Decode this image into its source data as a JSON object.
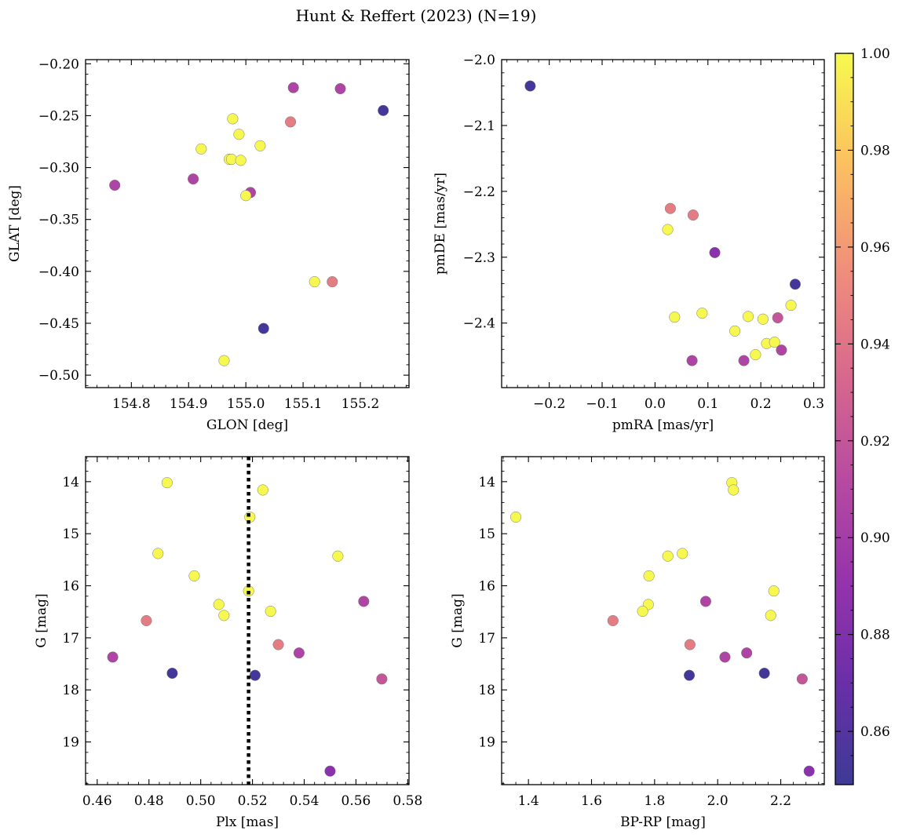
{
  "figure": {
    "title": "Hunt & Reffert (2023) (N=19)"
  },
  "colorbar": {
    "colormap": "plasma",
    "range": [
      0.849,
      1.0
    ],
    "ticks": [
      0.86,
      0.88,
      0.9,
      0.92,
      0.94,
      0.96,
      0.98,
      1.0
    ],
    "tick_labels": [
      "0.86",
      "0.88",
      "0.90",
      "0.92",
      "0.94",
      "0.96",
      "0.98",
      "1.00"
    ]
  },
  "chart_data": [
    {
      "type": "scatter",
      "id": "glon-glat",
      "xlabel": "GLON [deg]",
      "ylabel": "GLAT [deg]",
      "xlim": [
        154.72,
        155.285
      ],
      "ylim": [
        -0.512,
        -0.196
      ],
      "xticks": [
        154.8,
        154.9,
        155.0,
        155.1,
        155.2
      ],
      "xtick_labels": [
        "154.8",
        "154.9",
        "155.0",
        "155.1",
        "155.2"
      ],
      "yticks": [
        -0.5,
        -0.45,
        -0.4,
        -0.35,
        -0.3,
        -0.25,
        -0.2
      ],
      "ytick_labels": [
        "−0.50",
        "−0.45",
        "−0.40",
        "−0.35",
        "−0.30",
        "−0.25",
        "−0.20"
      ],
      "y_inverted": false,
      "points": [
        {
          "x": 154.771,
          "y": -0.317,
          "c": 0.906
        },
        {
          "x": 154.908,
          "y": -0.311,
          "c": 0.907
        },
        {
          "x": 154.922,
          "y": -0.282,
          "c": 0.999
        },
        {
          "x": 154.962,
          "y": -0.486,
          "c": 0.999
        },
        {
          "x": 154.971,
          "y": -0.292,
          "c": 0.999
        },
        {
          "x": 154.975,
          "y": -0.292,
          "c": 0.999
        },
        {
          "x": 154.977,
          "y": -0.253,
          "c": 0.999
        },
        {
          "x": 154.988,
          "y": -0.268,
          "c": 0.999
        },
        {
          "x": 154.991,
          "y": -0.293,
          "c": 0.999
        },
        {
          "x": 155.008,
          "y": -0.324,
          "c": 0.906
        },
        {
          "x": 155.0,
          "y": -0.327,
          "c": 0.999
        },
        {
          "x": 155.025,
          "y": -0.279,
          "c": 0.999
        },
        {
          "x": 155.031,
          "y": -0.455,
          "c": 0.852
        },
        {
          "x": 155.083,
          "y": -0.223,
          "c": 0.906
        },
        {
          "x": 155.078,
          "y": -0.256,
          "c": 0.945
        },
        {
          "x": 155.12,
          "y": -0.41,
          "c": 0.999
        },
        {
          "x": 155.151,
          "y": -0.41,
          "c": 0.945
        },
        {
          "x": 155.165,
          "y": -0.224,
          "c": 0.906
        },
        {
          "x": 155.24,
          "y": -0.245,
          "c": 0.852
        }
      ]
    },
    {
      "type": "scatter",
      "id": "pmra-pmde",
      "xlabel": "pmRA [mas/yr]",
      "ylabel": "pmDE [mas/yr]",
      "xlim": [
        -0.29,
        0.32
      ],
      "ylim": [
        -2.498,
        -2.0
      ],
      "xticks": [
        -0.2,
        -0.1,
        0.0,
        0.1,
        0.2,
        0.3
      ],
      "xtick_labels": [
        "−0.2",
        "−0.1",
        "0.0",
        "0.1",
        "0.2",
        "0.3"
      ],
      "yticks": [
        -2.4,
        -2.3,
        -2.2,
        -2.1,
        -2.0
      ],
      "ytick_labels": [
        "−2.4",
        "−2.3",
        "−2.2",
        "−2.1",
        "−2.0"
      ],
      "y_inverted": false,
      "points": [
        {
          "x": -0.236,
          "y": -2.04,
          "c": 0.852
        },
        {
          "x": 0.029,
          "y": -2.226,
          "c": 0.945
        },
        {
          "x": 0.072,
          "y": -2.236,
          "c": 0.945
        },
        {
          "x": 0.024,
          "y": -2.258,
          "c": 0.999
        },
        {
          "x": 0.113,
          "y": -2.293,
          "c": 0.885
        },
        {
          "x": 0.265,
          "y": -2.341,
          "c": 0.852
        },
        {
          "x": 0.257,
          "y": -2.373,
          "c": 0.999
        },
        {
          "x": 0.089,
          "y": -2.385,
          "c": 0.999
        },
        {
          "x": 0.037,
          "y": -2.391,
          "c": 0.999
        },
        {
          "x": 0.176,
          "y": -2.39,
          "c": 0.999
        },
        {
          "x": 0.232,
          "y": -2.392,
          "c": 0.92
        },
        {
          "x": 0.204,
          "y": -2.394,
          "c": 0.999
        },
        {
          "x": 0.151,
          "y": -2.412,
          "c": 0.999
        },
        {
          "x": 0.211,
          "y": -2.431,
          "c": 0.999
        },
        {
          "x": 0.226,
          "y": -2.429,
          "c": 0.999
        },
        {
          "x": 0.239,
          "y": -2.441,
          "c": 0.906
        },
        {
          "x": 0.19,
          "y": -2.448,
          "c": 0.999
        },
        {
          "x": 0.07,
          "y": -2.457,
          "c": 0.906
        },
        {
          "x": 0.168,
          "y": -2.457,
          "c": 0.906
        }
      ]
    },
    {
      "type": "scatter",
      "id": "plx-g",
      "xlabel": "Plx [mas]",
      "ylabel": "G [mag]",
      "xlim": [
        0.4555,
        0.5805
      ],
      "ylim": [
        19.82,
        13.52
      ],
      "xticks": [
        0.46,
        0.48,
        0.5,
        0.52,
        0.54,
        0.56,
        0.58
      ],
      "xtick_labels": [
        "0.46",
        "0.48",
        "0.50",
        "0.52",
        "0.54",
        "0.56",
        "0.58"
      ],
      "yticks": [
        14,
        15,
        16,
        17,
        18,
        19
      ],
      "ytick_labels": [
        "14",
        "15",
        "16",
        "17",
        "18",
        "19"
      ],
      "y_inverted": true,
      "vline": 0.5185,
      "points": [
        {
          "x": 0.487,
          "y": 14.02,
          "c": 0.999
        },
        {
          "x": 0.524,
          "y": 14.16,
          "c": 0.999
        },
        {
          "x": 0.519,
          "y": 14.68,
          "c": 0.999
        },
        {
          "x": 0.4835,
          "y": 15.38,
          "c": 0.999
        },
        {
          "x": 0.553,
          "y": 15.43,
          "c": 0.999
        },
        {
          "x": 0.4975,
          "y": 15.81,
          "c": 0.999
        },
        {
          "x": 0.5185,
          "y": 16.1,
          "c": 0.999
        },
        {
          "x": 0.563,
          "y": 16.3,
          "c": 0.906
        },
        {
          "x": 0.507,
          "y": 16.36,
          "c": 0.999
        },
        {
          "x": 0.527,
          "y": 16.49,
          "c": 0.999
        },
        {
          "x": 0.509,
          "y": 16.57,
          "c": 0.999
        },
        {
          "x": 0.479,
          "y": 16.67,
          "c": 0.945
        },
        {
          "x": 0.53,
          "y": 17.13,
          "c": 0.945
        },
        {
          "x": 0.538,
          "y": 17.29,
          "c": 0.906
        },
        {
          "x": 0.466,
          "y": 17.37,
          "c": 0.906
        },
        {
          "x": 0.489,
          "y": 17.68,
          "c": 0.852
        },
        {
          "x": 0.521,
          "y": 17.72,
          "c": 0.852
        },
        {
          "x": 0.57,
          "y": 17.79,
          "c": 0.92
        },
        {
          "x": 0.55,
          "y": 19.56,
          "c": 0.885
        }
      ]
    },
    {
      "type": "scatter",
      "id": "bprp-g",
      "xlabel": "BP-RP [mag]",
      "ylabel": "G [mag]",
      "xlim": [
        1.315,
        2.338
      ],
      "ylim": [
        19.82,
        13.52
      ],
      "xticks": [
        1.4,
        1.6,
        1.8,
        2.0,
        2.2
      ],
      "xtick_labels": [
        "1.4",
        "1.6",
        "1.8",
        "2.0",
        "2.2"
      ],
      "yticks": [
        14,
        15,
        16,
        17,
        18,
        19
      ],
      "ytick_labels": [
        "14",
        "15",
        "16",
        "17",
        "18",
        "19"
      ],
      "y_inverted": true,
      "points": [
        {
          "x": 2.045,
          "y": 14.02,
          "c": 0.999
        },
        {
          "x": 2.05,
          "y": 14.16,
          "c": 0.999
        },
        {
          "x": 1.36,
          "y": 14.68,
          "c": 0.999
        },
        {
          "x": 1.888,
          "y": 15.38,
          "c": 0.999
        },
        {
          "x": 1.842,
          "y": 15.43,
          "c": 0.999
        },
        {
          "x": 1.782,
          "y": 15.81,
          "c": 0.999
        },
        {
          "x": 2.178,
          "y": 16.1,
          "c": 0.999
        },
        {
          "x": 1.962,
          "y": 16.3,
          "c": 0.906
        },
        {
          "x": 1.78,
          "y": 16.36,
          "c": 0.999
        },
        {
          "x": 1.762,
          "y": 16.49,
          "c": 0.999
        },
        {
          "x": 2.168,
          "y": 16.57,
          "c": 0.999
        },
        {
          "x": 1.668,
          "y": 16.67,
          "c": 0.945
        },
        {
          "x": 1.912,
          "y": 17.13,
          "c": 0.945
        },
        {
          "x": 2.092,
          "y": 17.29,
          "c": 0.906
        },
        {
          "x": 2.023,
          "y": 17.37,
          "c": 0.906
        },
        {
          "x": 2.148,
          "y": 17.68,
          "c": 0.852
        },
        {
          "x": 1.91,
          "y": 17.72,
          "c": 0.852
        },
        {
          "x": 2.268,
          "y": 17.79,
          "c": 0.92
        },
        {
          "x": 2.29,
          "y": 19.56,
          "c": 0.885
        }
      ]
    }
  ]
}
